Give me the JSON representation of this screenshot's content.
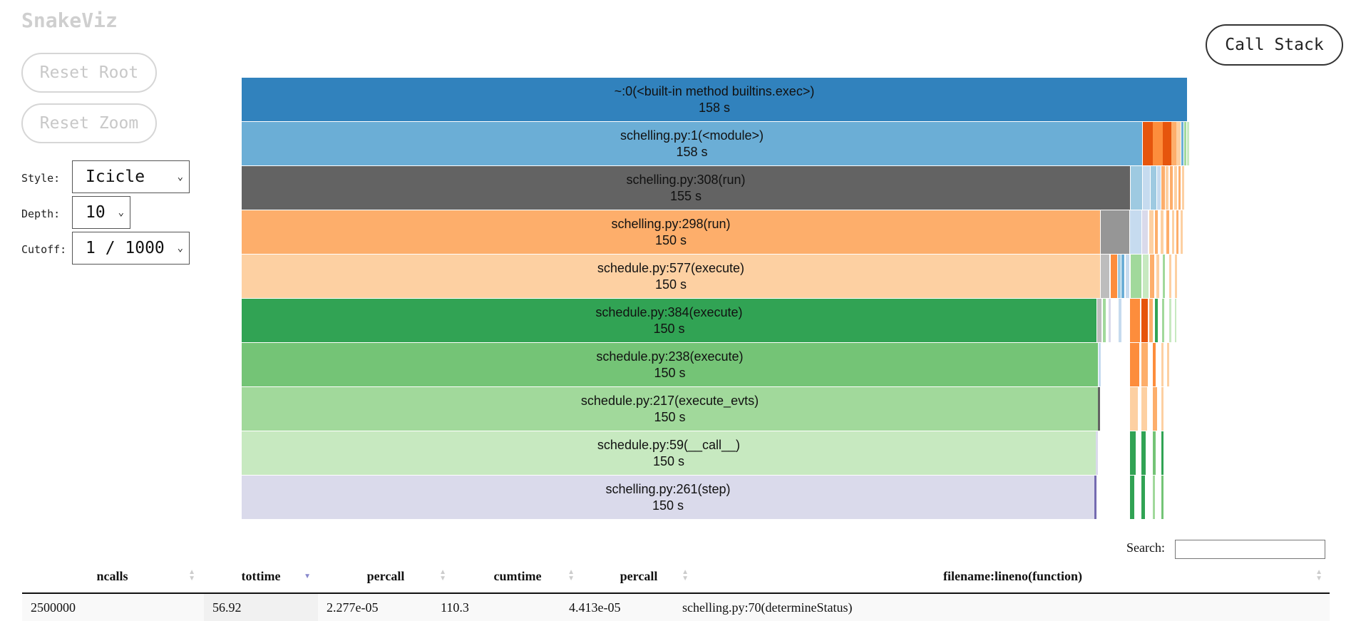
{
  "app": {
    "title": "SnakeViz"
  },
  "sidebar": {
    "reset_root_label": "Reset Root",
    "reset_zoom_label": "Reset Zoom",
    "style_label": "Style:",
    "style_value": "Icicle",
    "depth_label": "Depth:",
    "depth_value": "10",
    "cutoff_label": "Cutoff:",
    "cutoff_value": "1 / 1000"
  },
  "call_stack_label": "Call Stack",
  "icicle": {
    "bars": [
      {
        "name": "~:0(<built-in method builtins.exec>)",
        "time": "158 s",
        "color": "#3182bd"
      },
      {
        "name": "schelling.py:1(<module>)",
        "time": "158 s",
        "color": "#6baed6"
      },
      {
        "name": "schelling.py:308(run)",
        "time": "155 s",
        "color": "#636363"
      },
      {
        "name": "schelling.py:298(run)",
        "time": "150 s",
        "color": "#fdae6b"
      },
      {
        "name": "schedule.py:577(execute)",
        "time": "150 s",
        "color": "#fdd0a2"
      },
      {
        "name": "schedule.py:384(execute)",
        "time": "150 s",
        "color": "#31a354"
      },
      {
        "name": "schedule.py:238(execute)",
        "time": "150 s",
        "color": "#74c476"
      },
      {
        "name": "schedule.py:217(execute_evts)",
        "time": "150 s",
        "color": "#a1d99b"
      },
      {
        "name": "schedule.py:59(__call__)",
        "time": "150 s",
        "color": "#c7e9c0"
      },
      {
        "name": "schelling.py:261(step)",
        "time": "150 s",
        "color": "#dadaeb"
      }
    ]
  },
  "search": {
    "label": "Search:",
    "value": ""
  },
  "stats_table": {
    "columns": [
      "ncalls",
      "tottime",
      "percall",
      "cumtime",
      "percall",
      "filename:lineno(function)"
    ],
    "rows": [
      [
        "2500000",
        "56.92",
        "2.277e-05",
        "110.3",
        "4.413e-05",
        "schelling.py:70(determineStatus)"
      ]
    ]
  }
}
